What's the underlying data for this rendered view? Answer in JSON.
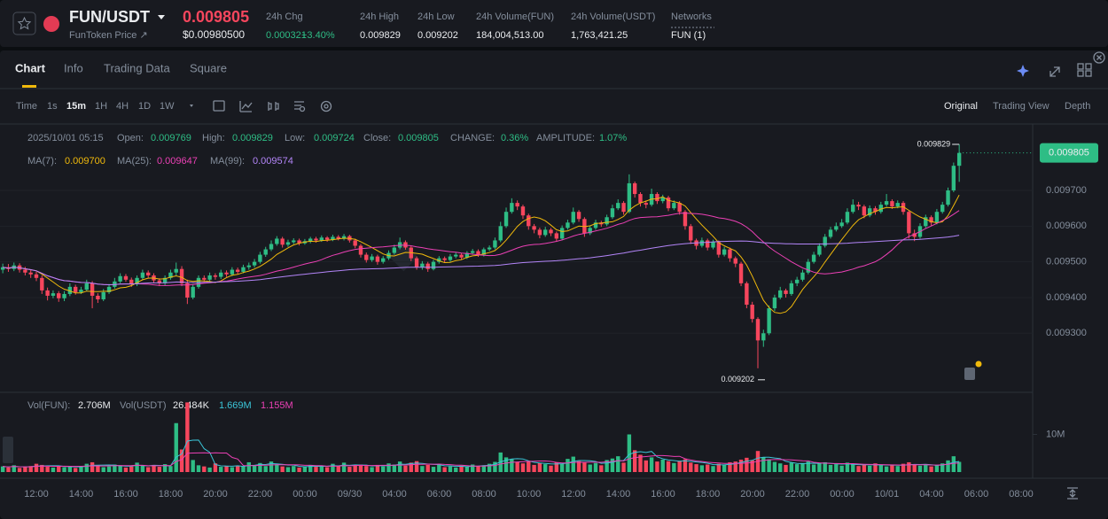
{
  "header": {
    "symbol": "FUN/USDT",
    "subtitle": "FunToken Price ↗",
    "price": "0.009805",
    "price_usd": "$0.00980500",
    "stats": [
      {
        "label": "24h Chg",
        "value": "0.000321",
        "change": "+3.40%"
      },
      {
        "label": "24h High",
        "value": "0.009829"
      },
      {
        "label": "24h Low",
        "value": "0.009202"
      },
      {
        "label": "24h Volume(FUN)",
        "value": "184,004,513.00"
      },
      {
        "label": "24h Volume(USDT)",
        "value": "1,763,421.25"
      },
      {
        "label": "Networks",
        "value": "FUN (1)"
      }
    ]
  },
  "tabs": [
    "Chart",
    "Info",
    "Trading Data",
    "Square"
  ],
  "intervals": [
    "Time",
    "1s",
    "15m",
    "1H",
    "4H",
    "1D",
    "1W"
  ],
  "views": [
    "Original",
    "Trading View",
    "Depth"
  ],
  "chart_data": {
    "type": "candlestick",
    "up_color": "#2ebd85",
    "down_color": "#f6465d",
    "info": {
      "datetime": "2025/10/01 05:15",
      "fields": [
        {
          "label": "Open:",
          "value": "0.009769"
        },
        {
          "label": "High:",
          "value": "0.009829"
        },
        {
          "label": "Low:",
          "value": "0.009724"
        },
        {
          "label": "Close:",
          "value": "0.009805"
        },
        {
          "label": "CHANGE:",
          "value": "0.36%"
        },
        {
          "label": "AMPLITUDE:",
          "value": "1.07%"
        }
      ]
    },
    "ma": [
      {
        "name": "MA(7):",
        "value": "0.009700",
        "period": 7,
        "color": "#f0b90b"
      },
      {
        "name": "MA(25):",
        "value": "0.009647",
        "period": 25,
        "color": "#eb40b5"
      },
      {
        "name": "MA(99):",
        "value": "0.009574",
        "period": 99,
        "color": "#b385f8"
      }
    ],
    "volume_info": [
      {
        "name": "Vol(FUN):",
        "value": "2.706M"
      },
      {
        "name": "Vol(USDT)",
        "value": "26.484K"
      },
      {
        "value": "1.669M",
        "period": 5,
        "color": "#3bc5d8"
      },
      {
        "value": "1.155M",
        "period": 10,
        "color": "#eb40b5"
      }
    ],
    "ylim": [
      0.009142,
      0.009886
    ],
    "yticks": [
      {
        "value": 0.0097,
        "label": "0.009700"
      },
      {
        "value": 0.0096,
        "label": "0.009600"
      },
      {
        "value": 0.0095,
        "label": "0.009500"
      },
      {
        "value": 0.0094,
        "label": "0.009400"
      },
      {
        "value": 0.0093,
        "label": "0.009300"
      }
    ],
    "volume_ylim": [
      0,
      20000000
    ],
    "volume_yticks": [
      {
        "value": 10000000,
        "label": "10M"
      }
    ],
    "xticks": [
      "12:00",
      "14:00",
      "16:00",
      "18:00",
      "20:00",
      "22:00",
      "00:00",
      "09/30",
      "04:00",
      "06:00",
      "08:00",
      "10:00",
      "12:00",
      "14:00",
      "16:00",
      "18:00",
      "20:00",
      "22:00",
      "00:00",
      "10/01",
      "04:00",
      "06:00",
      "08:00"
    ],
    "open": [
      0.009478,
      0.009485,
      0.00948,
      0.00949,
      0.009478,
      0.00947,
      0.009465,
      0.009455,
      0.00942,
      0.009405,
      0.009412,
      0.009398,
      0.00941,
      0.00943,
      0.009415,
      0.009422,
      0.00944,
      0.009405,
      0.009395,
      0.009415,
      0.00943,
      0.009445,
      0.00946,
      0.00945,
      0.009438,
      0.009455,
      0.00947,
      0.009462,
      0.009448,
      0.00944,
      0.009455,
      0.00947,
      0.00948,
      0.00944,
      0.0094,
      0.00943,
      0.009455,
      0.00945,
      0.009462,
      0.009458,
      0.00947,
      0.009465,
      0.009478,
      0.009472,
      0.009485,
      0.00949,
      0.0095,
      0.00952,
      0.009535,
      0.00955,
      0.009565,
      0.009548,
      0.009555,
      0.00956,
      0.009552,
      0.009558,
      0.009565,
      0.00956,
      0.009568,
      0.009562,
      0.00957,
      0.009565,
      0.009572,
      0.00956,
      0.009545,
      0.00952,
      0.009505,
      0.009515,
      0.0095,
      0.00951,
      0.009525,
      0.00954,
      0.009555,
      0.00954,
      0.00951,
      0.009485,
      0.009495,
      0.00948,
      0.0095,
      0.00951,
      0.009505,
      0.009515,
      0.00952,
      0.009512,
      0.009525,
      0.00953,
      0.00952,
      0.009535,
      0.00954,
      0.00956,
      0.0096,
      0.00964,
      0.009665,
      0.009655,
      0.00963,
      0.0096,
      0.00959,
      0.009575,
      0.00959,
      0.00958,
      0.009565,
      0.009595,
      0.00961,
      0.00964,
      0.00962,
      0.00958,
      0.009595,
      0.00961,
      0.009605,
      0.009625,
      0.00965,
      0.009665,
      0.00964,
      0.00972,
      0.00969,
      0.009665,
      0.00966,
      0.00969,
      0.00967,
      0.00968,
      0.00965,
      0.009665,
      0.00964,
      0.0096,
      0.00956,
      0.009545,
      0.00956,
      0.00954,
      0.009555,
      0.00952,
      0.009535,
      0.00951,
      0.009495,
      0.00944,
      0.00938,
      0.00934,
      0.00928,
      0.0093,
      0.00937,
      0.0094,
      0.00942,
      0.00941,
      0.00944,
      0.00945,
      0.00947,
      0.0095,
      0.00952,
      0.009545,
      0.00957,
      0.00959,
      0.0096,
      0.00961,
      0.00964,
      0.00966,
      0.009655,
      0.00963,
      0.00965,
      0.00964,
      0.00966,
      0.00967,
      0.009655,
      0.009665,
      0.00964,
      0.00958,
      0.00957,
      0.0096,
      0.009625,
      0.00961,
      0.00964,
      0.00966,
      0.0097,
      0.009769
    ],
    "high": [
      0.009495,
      0.009494,
      0.009498,
      0.009496,
      0.009486,
      0.009478,
      0.009472,
      0.009462,
      0.009428,
      0.00942,
      0.009418,
      0.009418,
      0.00944,
      0.009436,
      0.00943,
      0.00945,
      0.009446,
      0.009412,
      0.009424,
      0.009438,
      0.009455,
      0.009468,
      0.009466,
      0.009456,
      0.009462,
      0.009478,
      0.009476,
      0.009468,
      0.009454,
      0.009462,
      0.009478,
      0.009498,
      0.009488,
      0.00945,
      0.009438,
      0.009462,
      0.009462,
      0.00947,
      0.009468,
      0.009478,
      0.009476,
      0.009485,
      0.009484,
      0.009492,
      0.009498,
      0.009508,
      0.009528,
      0.009542,
      0.00956,
      0.009572,
      0.00957,
      0.009562,
      0.009566,
      0.009565,
      0.009564,
      0.00957,
      0.00957,
      0.009574,
      0.009572,
      0.009576,
      0.009575,
      0.009578,
      0.009576,
      0.009565,
      0.00955,
      0.009526,
      0.009522,
      0.00952,
      0.009516,
      0.009532,
      0.009548,
      0.009568,
      0.00956,
      0.009545,
      0.009515,
      0.009502,
      0.0095,
      0.009506,
      0.009516,
      0.009515,
      0.009522,
      0.009526,
      0.009525,
      0.00953,
      0.009536,
      0.009535,
      0.00954,
      0.009546,
      0.009568,
      0.009612,
      0.009652,
      0.009678,
      0.009672,
      0.00966,
      0.009635,
      0.009606,
      0.009596,
      0.009598,
      0.009595,
      0.009585,
      0.009602,
      0.009618,
      0.009652,
      0.009645,
      0.009625,
      0.009602,
      0.009618,
      0.009615,
      0.009632,
      0.00966,
      0.009675,
      0.00967,
      0.009745,
      0.009725,
      0.009695,
      0.009672,
      0.009705,
      0.009695,
      0.009688,
      0.009685,
      0.009672,
      0.00967,
      0.009645,
      0.009606,
      0.009565,
      0.009568,
      0.009565,
      0.009562,
      0.00956,
      0.009542,
      0.00954,
      0.009515,
      0.0095,
      0.009445,
      0.009388,
      0.009345,
      0.00931,
      0.009378,
      0.009408,
      0.00943,
      0.009425,
      0.009448,
      0.009458,
      0.009478,
      0.009508,
      0.009528,
      0.009552,
      0.009578,
      0.009598,
      0.00961,
      0.00962,
      0.00965,
      0.009675,
      0.009668,
      0.00966,
      0.009658,
      0.009656,
      0.009668,
      0.00969,
      0.009675,
      0.009672,
      0.00967,
      0.009645,
      0.00959,
      0.009608,
      0.009632,
      0.00963,
      0.009648,
      0.009668,
      0.009708,
      0.009778,
      0.009829
    ],
    "low": [
      0.009468,
      0.009472,
      0.009474,
      0.00947,
      0.009462,
      0.009455,
      0.009446,
      0.00941,
      0.009392,
      0.009398,
      0.009388,
      0.00939,
      0.009404,
      0.009408,
      0.00941,
      0.009418,
      0.00937,
      0.009385,
      0.00939,
      0.00941,
      0.009425,
      0.00944,
      0.009444,
      0.00943,
      0.009432,
      0.00945,
      0.009455,
      0.00944,
      0.009432,
      0.009435,
      0.00945,
      0.009462,
      0.009432,
      0.009382,
      0.009395,
      0.009425,
      0.009444,
      0.009445,
      0.00945,
      0.009452,
      0.009458,
      0.00946,
      0.009466,
      0.009468,
      0.009478,
      0.009484,
      0.009495,
      0.009514,
      0.00953,
      0.009545,
      0.00954,
      0.009542,
      0.00955,
      0.009546,
      0.009548,
      0.009552,
      0.009554,
      0.009556,
      0.009556,
      0.009558,
      0.00956,
      0.00956,
      0.009554,
      0.009538,
      0.009512,
      0.009498,
      0.0095,
      0.009492,
      0.009495,
      0.009505,
      0.00952,
      0.009535,
      0.009534,
      0.009502,
      0.009478,
      0.009478,
      0.009472,
      0.009476,
      0.009495,
      0.009498,
      0.0095,
      0.00951,
      0.009506,
      0.009508,
      0.00952,
      0.009514,
      0.009515,
      0.00953,
      0.009535,
      0.009555,
      0.009595,
      0.009635,
      0.009645,
      0.00962,
      0.00959,
      0.00958,
      0.009566,
      0.00957,
      0.009572,
      0.009556,
      0.00956,
      0.00959,
      0.009605,
      0.009612,
      0.00957,
      0.009575,
      0.00959,
      0.009598,
      0.0096,
      0.00962,
      0.009645,
      0.009632,
      0.009636,
      0.00968,
      0.009655,
      0.00965,
      0.009655,
      0.009662,
      0.009664,
      0.009642,
      0.009645,
      0.009632,
      0.00959,
      0.00955,
      0.009535,
      0.00954,
      0.009532,
      0.009535,
      0.009512,
      0.009515,
      0.0095,
      0.009485,
      0.009432,
      0.00937,
      0.00933,
      0.009202,
      0.009262,
      0.009295,
      0.009362,
      0.009395,
      0.0094,
      0.009405,
      0.009432,
      0.009445,
      0.009465,
      0.009495,
      0.009515,
      0.00954,
      0.009565,
      0.009585,
      0.009595,
      0.009605,
      0.009635,
      0.009645,
      0.009622,
      0.009625,
      0.009632,
      0.009635,
      0.009655,
      0.009648,
      0.00965,
      0.009632,
      0.009565,
      0.009558,
      0.009565,
      0.009595,
      0.0096,
      0.009605,
      0.009635,
      0.009655,
      0.009695,
      0.009724
    ],
    "close": [
      0.009485,
      0.00948,
      0.00949,
      0.009478,
      0.00947,
      0.009465,
      0.009455,
      0.00942,
      0.009405,
      0.009412,
      0.009398,
      0.00941,
      0.00943,
      0.009415,
      0.009422,
      0.00944,
      0.009405,
      0.009395,
      0.009415,
      0.00943,
      0.009445,
      0.00946,
      0.00945,
      0.009438,
      0.009455,
      0.00947,
      0.009462,
      0.009448,
      0.00944,
      0.009455,
      0.00947,
      0.00948,
      0.00944,
      0.0094,
      0.00943,
      0.009455,
      0.00945,
      0.009462,
      0.009458,
      0.00947,
      0.009465,
      0.009478,
      0.009472,
      0.009485,
      0.00949,
      0.0095,
      0.00952,
      0.009535,
      0.00955,
      0.009565,
      0.009548,
      0.009555,
      0.00956,
      0.009552,
      0.009558,
      0.009565,
      0.00956,
      0.009568,
      0.009562,
      0.00957,
      0.009565,
      0.009572,
      0.00956,
      0.009545,
      0.00952,
      0.009505,
      0.009515,
      0.0095,
      0.00951,
      0.009525,
      0.00954,
      0.009555,
      0.00954,
      0.00951,
      0.009485,
      0.009495,
      0.00948,
      0.0095,
      0.00951,
      0.009505,
      0.009515,
      0.00952,
      0.009512,
      0.009525,
      0.00953,
      0.00952,
      0.009535,
      0.00954,
      0.00956,
      0.0096,
      0.00964,
      0.009665,
      0.009655,
      0.00963,
      0.0096,
      0.00959,
      0.009575,
      0.00959,
      0.00958,
      0.009565,
      0.009595,
      0.00961,
      0.00964,
      0.00962,
      0.00958,
      0.009595,
      0.00961,
      0.009605,
      0.009625,
      0.00965,
      0.009665,
      0.00964,
      0.00972,
      0.00969,
      0.009665,
      0.00966,
      0.00969,
      0.00967,
      0.00968,
      0.00965,
      0.009665,
      0.00964,
      0.0096,
      0.00956,
      0.009545,
      0.00956,
      0.00954,
      0.009555,
      0.00952,
      0.009535,
      0.00951,
      0.009495,
      0.00944,
      0.00938,
      0.00934,
      0.00928,
      0.0093,
      0.00937,
      0.0094,
      0.00942,
      0.00941,
      0.00944,
      0.00945,
      0.00947,
      0.0095,
      0.00952,
      0.009545,
      0.00957,
      0.00959,
      0.0096,
      0.00961,
      0.00964,
      0.00966,
      0.009655,
      0.00963,
      0.00965,
      0.00964,
      0.00966,
      0.00967,
      0.009655,
      0.009665,
      0.00964,
      0.00958,
      0.00957,
      0.0096,
      0.009625,
      0.00961,
      0.00964,
      0.00966,
      0.0097,
      0.009769,
      0.009805
    ],
    "volume": [
      1500000,
      1200000,
      1800000,
      1100000,
      1300000,
      1600000,
      2200000,
      1900000,
      1400000,
      1200000,
      1700000,
      1300000,
      1600000,
      1100000,
      1400000,
      2200000,
      2600000,
      1800000,
      1300000,
      1500000,
      2000000,
      1800000,
      1200000,
      1500000,
      2500000,
      1700000,
      1300000,
      1900000,
      1400000,
      2100000,
      1600000,
      13000000,
      6000000,
      18500000,
      3200000,
      1800000,
      1500000,
      1200000,
      2300000,
      1400000,
      1600000,
      1300000,
      1700000,
      1500000,
      2600000,
      1900000,
      2400000,
      1600000,
      2800000,
      2100000,
      1500000,
      1300000,
      1600000,
      1200000,
      1500000,
      1900000,
      1400000,
      1700000,
      1300000,
      2200000,
      1600000,
      2500000,
      1400000,
      1800000,
      2000000,
      1600000,
      1300000,
      1900000,
      1500000,
      2300000,
      2000000,
      2800000,
      1700000,
      2500000,
      2900000,
      1600000,
      1900000,
      1400000,
      2100000,
      1300000,
      1500000,
      1200000,
      1700000,
      1400000,
      2000000,
      1600000,
      1800000,
      2200000,
      2700000,
      5200000,
      3900000,
      3400000,
      2600000,
      2300000,
      2800000,
      1900000,
      2400000,
      2100000,
      1700000,
      2600000,
      2200000,
      3500000,
      4100000,
      2900000,
      2600000,
      2000000,
      2400000,
      1800000,
      3200000,
      3600000,
      4200000,
      2500000,
      10000000,
      5800000,
      4600000,
      3100000,
      3900000,
      2800000,
      3300000,
      2900000,
      2400000,
      3000000,
      3400000,
      2500000,
      2100000,
      1800000,
      2000000,
      1600000,
      2200000,
      1900000,
      2600000,
      2800000,
      3300000,
      3800000,
      3100000,
      5600000,
      3900000,
      3400000,
      2700000,
      2300000,
      1900000,
      2500000,
      2100000,
      2400000,
      2800000,
      2000000,
      2300000,
      2600000,
      1900000,
      2100000,
      1700000,
      2500000,
      2000000,
      1600000,
      1900000,
      1700000,
      2300000,
      2000000,
      1500000,
      1800000,
      1600000,
      2200000,
      2600000,
      1900000,
      1700000,
      2000000,
      1500000,
      1800000,
      2300000,
      3100000,
      4200000,
      2706000
    ]
  }
}
